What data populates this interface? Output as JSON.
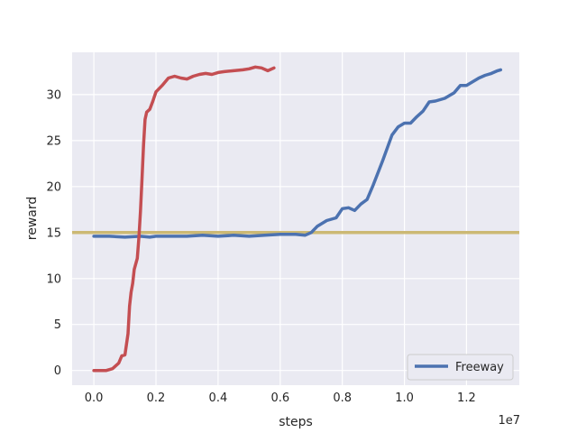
{
  "chart_data": {
    "type": "line",
    "title": "",
    "xlabel": "steps",
    "ylabel": "reward",
    "x_offset_label": "1e7",
    "xlim": [
      -0.07,
      1.37
    ],
    "ylim": [
      -1.6,
      34.6
    ],
    "x_ticks": [
      {
        "value": 0.0,
        "label": "0.0"
      },
      {
        "value": 0.2,
        "label": "0.2"
      },
      {
        "value": 0.4,
        "label": "0.4"
      },
      {
        "value": 0.6,
        "label": "0.6"
      },
      {
        "value": 0.8,
        "label": "0.8"
      },
      {
        "value": 1.0,
        "label": "1.0"
      },
      {
        "value": 1.2,
        "label": "1.2"
      }
    ],
    "y_ticks": [
      {
        "value": 0,
        "label": "0"
      },
      {
        "value": 5,
        "label": "5"
      },
      {
        "value": 10,
        "label": "10"
      },
      {
        "value": 15,
        "label": "15"
      },
      {
        "value": 20,
        "label": "20"
      },
      {
        "value": 25,
        "label": "25"
      },
      {
        "value": 30,
        "label": "30"
      }
    ],
    "grid": true,
    "legend": {
      "position": "lower-right",
      "entries": [
        "Freeway"
      ]
    },
    "colors": {
      "background": "#eaeaf2",
      "grid": "#ffffff",
      "blue": "#4c72b0",
      "red": "#c44e52",
      "gold": "#ccb974"
    },
    "series": [
      {
        "name": "Freeway",
        "color": "#4c72b0",
        "x": [
          0.0,
          0.05,
          0.1,
          0.15,
          0.18,
          0.2,
          0.25,
          0.3,
          0.35,
          0.4,
          0.45,
          0.5,
          0.55,
          0.6,
          0.65,
          0.68,
          0.7,
          0.72,
          0.75,
          0.78,
          0.8,
          0.82,
          0.84,
          0.86,
          0.88,
          0.9,
          0.93,
          0.96,
          0.98,
          1.0,
          1.02,
          1.04,
          1.06,
          1.08,
          1.1,
          1.13,
          1.16,
          1.18,
          1.2,
          1.22,
          1.24,
          1.26,
          1.28,
          1.3,
          1.31
        ],
        "y": [
          14.6,
          14.6,
          14.5,
          14.6,
          14.5,
          14.6,
          14.6,
          14.6,
          14.7,
          14.6,
          14.7,
          14.6,
          14.7,
          14.8,
          14.8,
          14.7,
          15.0,
          15.7,
          16.3,
          16.6,
          17.6,
          17.7,
          17.4,
          18.1,
          18.6,
          20.2,
          22.8,
          25.6,
          26.5,
          26.9,
          26.9,
          27.6,
          28.2,
          29.2,
          29.3,
          29.6,
          30.2,
          31.0,
          31.0,
          31.4,
          31.8,
          32.1,
          32.3,
          32.6,
          32.7
        ]
      },
      {
        "color": "#c44e52",
        "x": [
          0.0,
          0.04,
          0.06,
          0.08,
          0.09,
          0.1,
          0.11,
          0.115,
          0.12,
          0.125,
          0.13,
          0.14,
          0.145,
          0.15,
          0.155,
          0.16,
          0.165,
          0.17,
          0.18,
          0.19,
          0.2,
          0.22,
          0.24,
          0.26,
          0.28,
          0.3,
          0.32,
          0.34,
          0.36,
          0.38,
          0.4,
          0.42,
          0.45,
          0.48,
          0.5,
          0.52,
          0.54,
          0.56,
          0.58
        ],
        "y": [
          0.0,
          0.0,
          0.2,
          0.8,
          1.6,
          1.7,
          4.0,
          7.0,
          8.5,
          9.5,
          11.0,
          12.2,
          14.5,
          17.3,
          20.8,
          24.5,
          27.3,
          28.1,
          28.4,
          29.3,
          30.3,
          31.0,
          31.8,
          32.0,
          31.8,
          31.7,
          32.0,
          32.2,
          32.3,
          32.2,
          32.4,
          32.5,
          32.6,
          32.7,
          32.8,
          33.0,
          32.9,
          32.6,
          32.9
        ]
      }
    ],
    "reference_lines": [
      {
        "y": 15.0,
        "color": "#ccb974"
      }
    ]
  }
}
